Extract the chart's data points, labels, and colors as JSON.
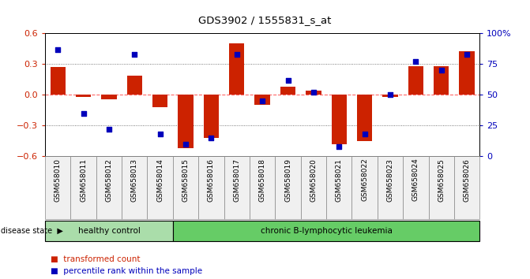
{
  "title": "GDS3902 / 1555831_s_at",
  "samples": [
    "GSM658010",
    "GSM658011",
    "GSM658012",
    "GSM658013",
    "GSM658014",
    "GSM658015",
    "GSM658016",
    "GSM658017",
    "GSM658018",
    "GSM658019",
    "GSM658020",
    "GSM658021",
    "GSM658022",
    "GSM658023",
    "GSM658024",
    "GSM658025",
    "GSM658026"
  ],
  "red_bars": [
    0.27,
    -0.02,
    -0.04,
    0.19,
    -0.12,
    -0.52,
    -0.42,
    0.5,
    -0.1,
    0.08,
    0.04,
    -0.48,
    -0.45,
    -0.02,
    0.28,
    0.28,
    0.43
  ],
  "blue_dots": [
    87,
    35,
    22,
    83,
    18,
    10,
    15,
    83,
    45,
    62,
    52,
    8,
    18,
    50,
    77,
    70,
    83
  ],
  "ylim_left": [
    -0.6,
    0.6
  ],
  "ylim_right": [
    0,
    100
  ],
  "yticks_left": [
    -0.6,
    -0.3,
    0.0,
    0.3,
    0.6
  ],
  "yticks_right": [
    0,
    25,
    50,
    75,
    100
  ],
  "ytick_labels_right": [
    "0",
    "25",
    "50",
    "75",
    "100%"
  ],
  "bar_color": "#CC2200",
  "dot_color": "#0000BB",
  "healthy_control_count": 5,
  "group1_label": "healthy control",
  "group2_label": "chronic B-lymphocytic leukemia",
  "group1_color": "#AADDAA",
  "group2_color": "#66CC66",
  "disease_state_label": "disease state",
  "legend_red": "transformed count",
  "legend_blue": "percentile rank within the sample",
  "hline_color": "#FF6666",
  "dotted_color": "#555555",
  "tick_label_size": 6.5,
  "bar_width": 0.6,
  "bg_color": "#F0F0F0"
}
